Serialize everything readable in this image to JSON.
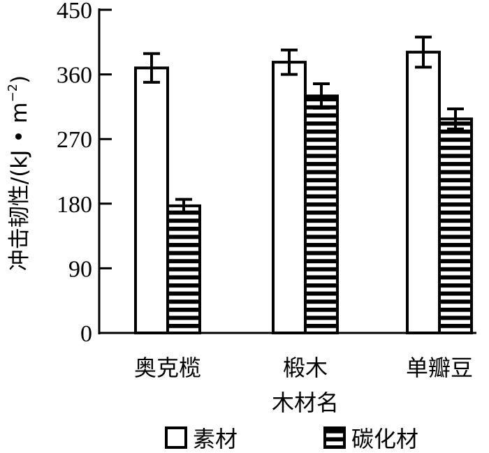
{
  "chart_data": {
    "type": "bar",
    "title": "",
    "xlabel": "木材名",
    "ylabel": "冲击韧性/(kJ·m⁻²)",
    "ylabel_parts": {
      "main": "冲击韧性/(kJ • m",
      "exp": "−2",
      "close": ")"
    },
    "ylim": [
      0,
      450
    ],
    "yticks": [
      0,
      90,
      180,
      270,
      360,
      450
    ],
    "categories": [
      "奥克榄",
      "椴木",
      "单瓣豆"
    ],
    "series": [
      {
        "name": "素材",
        "pattern": "white",
        "values": [
          369,
          377,
          391
        ],
        "errors": [
          20,
          17,
          21
        ]
      },
      {
        "name": "碳化材",
        "pattern": "horizontal-stripes",
        "values": [
          177,
          330,
          298
        ],
        "errors": [
          9,
          17,
          14
        ]
      }
    ],
    "legend_position": "bottom",
    "grid": false,
    "colors": {
      "stroke": "#000000",
      "fill": "#ffffff"
    }
  }
}
